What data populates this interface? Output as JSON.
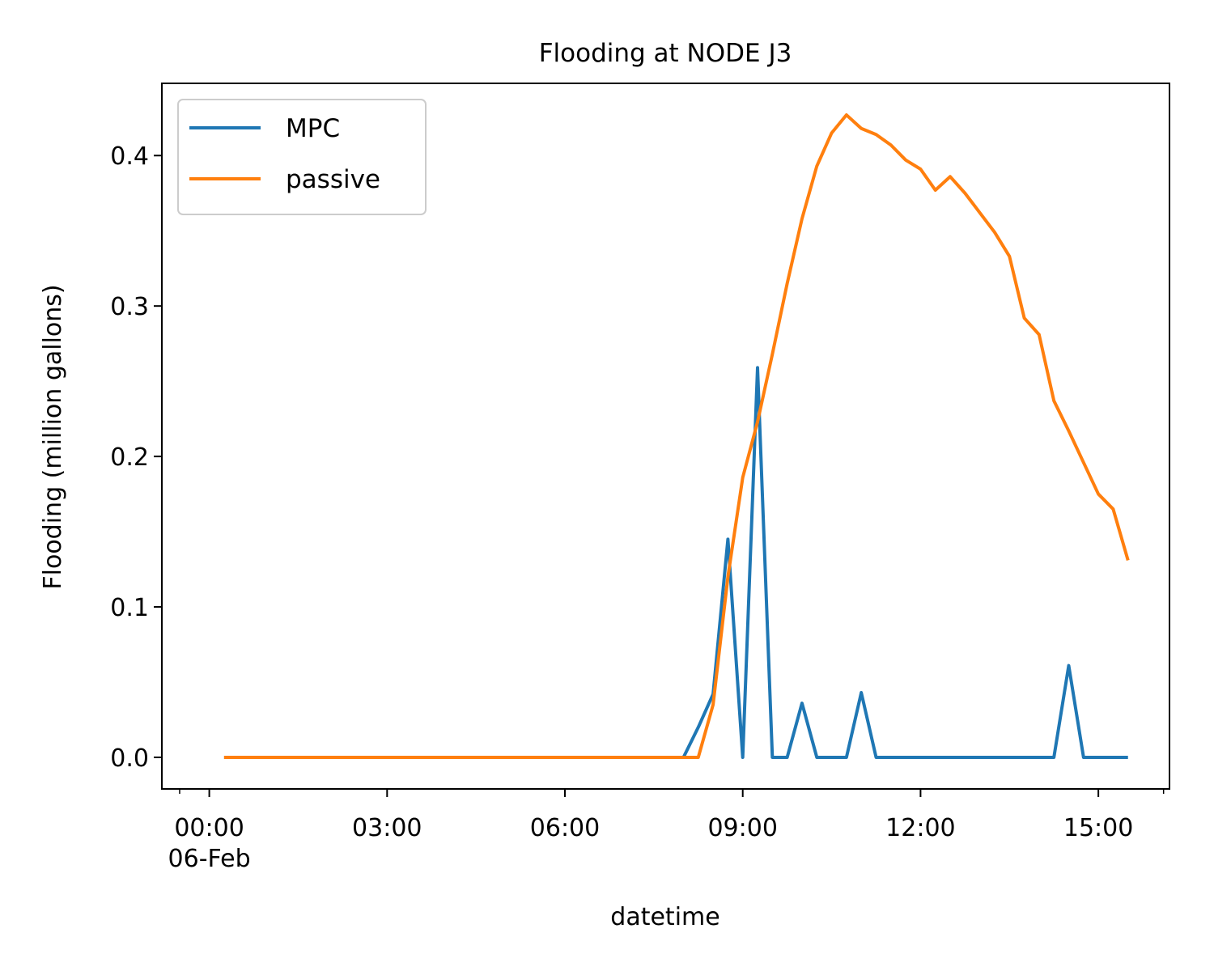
{
  "chart_data": {
    "type": "line",
    "title": "Flooding at NODE J3",
    "xlabel": "datetime",
    "ylabel": "Flooding (million gallons)",
    "x_unit": "hours",
    "xlim": [
      -0.8,
      16.2
    ],
    "ylim": [
      -0.021,
      0.448
    ],
    "x_ticks": [
      {
        "value": 0,
        "lines": [
          "00:00",
          "06-Feb"
        ]
      },
      {
        "value": 3,
        "lines": [
          "03:00"
        ]
      },
      {
        "value": 6,
        "lines": [
          "06:00"
        ]
      },
      {
        "value": 9,
        "lines": [
          "09:00"
        ]
      },
      {
        "value": 12,
        "lines": [
          "12:00"
        ]
      },
      {
        "value": 15,
        "lines": [
          "15:00"
        ]
      }
    ],
    "x_minor_ticks": [
      -0.5,
      16.1
    ],
    "y_ticks": [
      {
        "value": 0.0,
        "label": "0.0"
      },
      {
        "value": 0.1,
        "label": "0.1"
      },
      {
        "value": 0.2,
        "label": "0.2"
      },
      {
        "value": 0.3,
        "label": "0.3"
      },
      {
        "value": 0.4,
        "label": "0.4"
      }
    ],
    "grid": false,
    "legend_position": "top-left",
    "series": [
      {
        "name": "MPC",
        "color": "#1f77b4",
        "points": [
          [
            0.25,
            0
          ],
          [
            8.0,
            0
          ],
          [
            8.25,
            0.02
          ],
          [
            8.5,
            0.042
          ],
          [
            8.75,
            0.145
          ],
          [
            9.0,
            0
          ],
          [
            9.25,
            0.259
          ],
          [
            9.5,
            0
          ],
          [
            9.75,
            0
          ],
          [
            10.0,
            0.036
          ],
          [
            10.25,
            0
          ],
          [
            10.75,
            0
          ],
          [
            11.0,
            0.043
          ],
          [
            11.25,
            0
          ],
          [
            14.25,
            0
          ],
          [
            14.5,
            0.061
          ],
          [
            14.75,
            0
          ],
          [
            15.5,
            0
          ]
        ]
      },
      {
        "name": "passive",
        "color": "#ff7f0e",
        "points": [
          [
            0.25,
            0
          ],
          [
            8.25,
            0
          ],
          [
            8.5,
            0.035
          ],
          [
            8.75,
            0.12
          ],
          [
            9.0,
            0.186
          ],
          [
            9.25,
            0.223
          ],
          [
            9.5,
            0.268
          ],
          [
            9.75,
            0.315
          ],
          [
            10.0,
            0.358
          ],
          [
            10.25,
            0.393
          ],
          [
            10.5,
            0.415
          ],
          [
            10.75,
            0.427
          ],
          [
            11.0,
            0.418
          ],
          [
            11.25,
            0.414
          ],
          [
            11.5,
            0.407
          ],
          [
            11.75,
            0.397
          ],
          [
            12.0,
            0.391
          ],
          [
            12.25,
            0.377
          ],
          [
            12.5,
            0.386
          ],
          [
            12.75,
            0.375
          ],
          [
            13.0,
            0.362
          ],
          [
            13.25,
            0.349
          ],
          [
            13.5,
            0.333
          ],
          [
            13.75,
            0.292
          ],
          [
            14.0,
            0.281
          ],
          [
            14.25,
            0.237
          ],
          [
            14.5,
            0.217
          ],
          [
            14.75,
            0.196
          ],
          [
            15.0,
            0.175
          ],
          [
            15.25,
            0.165
          ],
          [
            15.5,
            0.131
          ]
        ]
      }
    ]
  }
}
